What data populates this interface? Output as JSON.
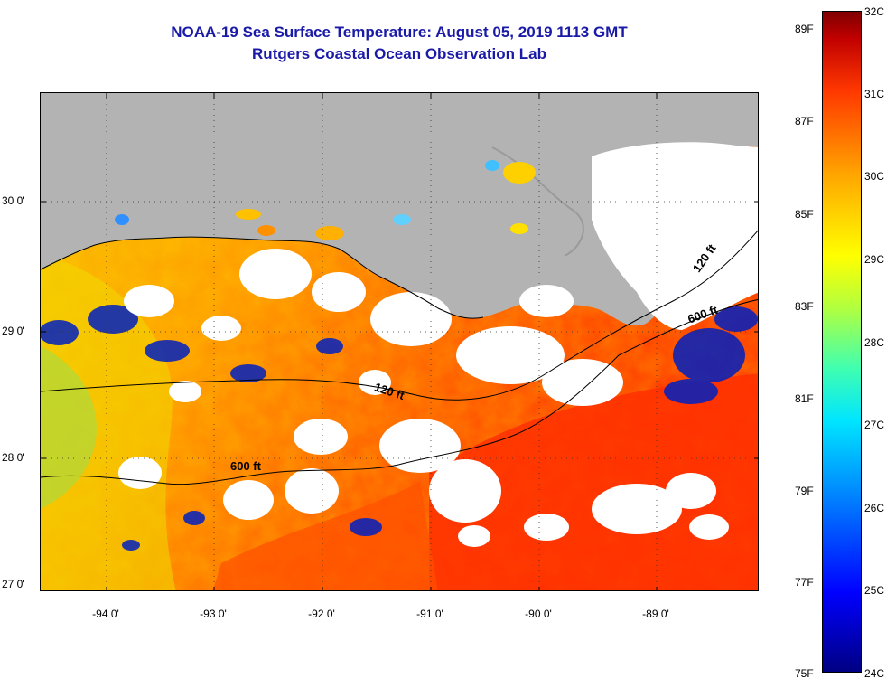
{
  "title": "NOAA-19 Sea Surface Temperature:  August 05, 2019 1113 GMT",
  "subtitle": "Rutgers Coastal Ocean Observation Lab",
  "map": {
    "lat_ticks": [
      "30 0'",
      "29 0'",
      "28 0'",
      "27 0'"
    ],
    "lon_ticks": [
      "-94 0'",
      "-93 0'",
      "-92 0'",
      "-91 0'",
      "-90 0'",
      "-89 0'"
    ],
    "contour_labels": [
      "120 ft",
      "600 ft",
      "120 ft",
      "600 ft"
    ],
    "colors": {
      "land": "#b3b3b3",
      "cloud": "#ffffff",
      "warm": "#ff3a00",
      "mid": "#ffa000",
      "cool": "#0020c0"
    }
  },
  "colorbar": {
    "fahrenheit": [
      "89F",
      "87F",
      "85F",
      "83F",
      "81F",
      "79F",
      "77F",
      "75F"
    ],
    "celsius": [
      "32C",
      "31C",
      "30C",
      "29C",
      "28C",
      "27C",
      "26C",
      "25C",
      "24C"
    ]
  }
}
